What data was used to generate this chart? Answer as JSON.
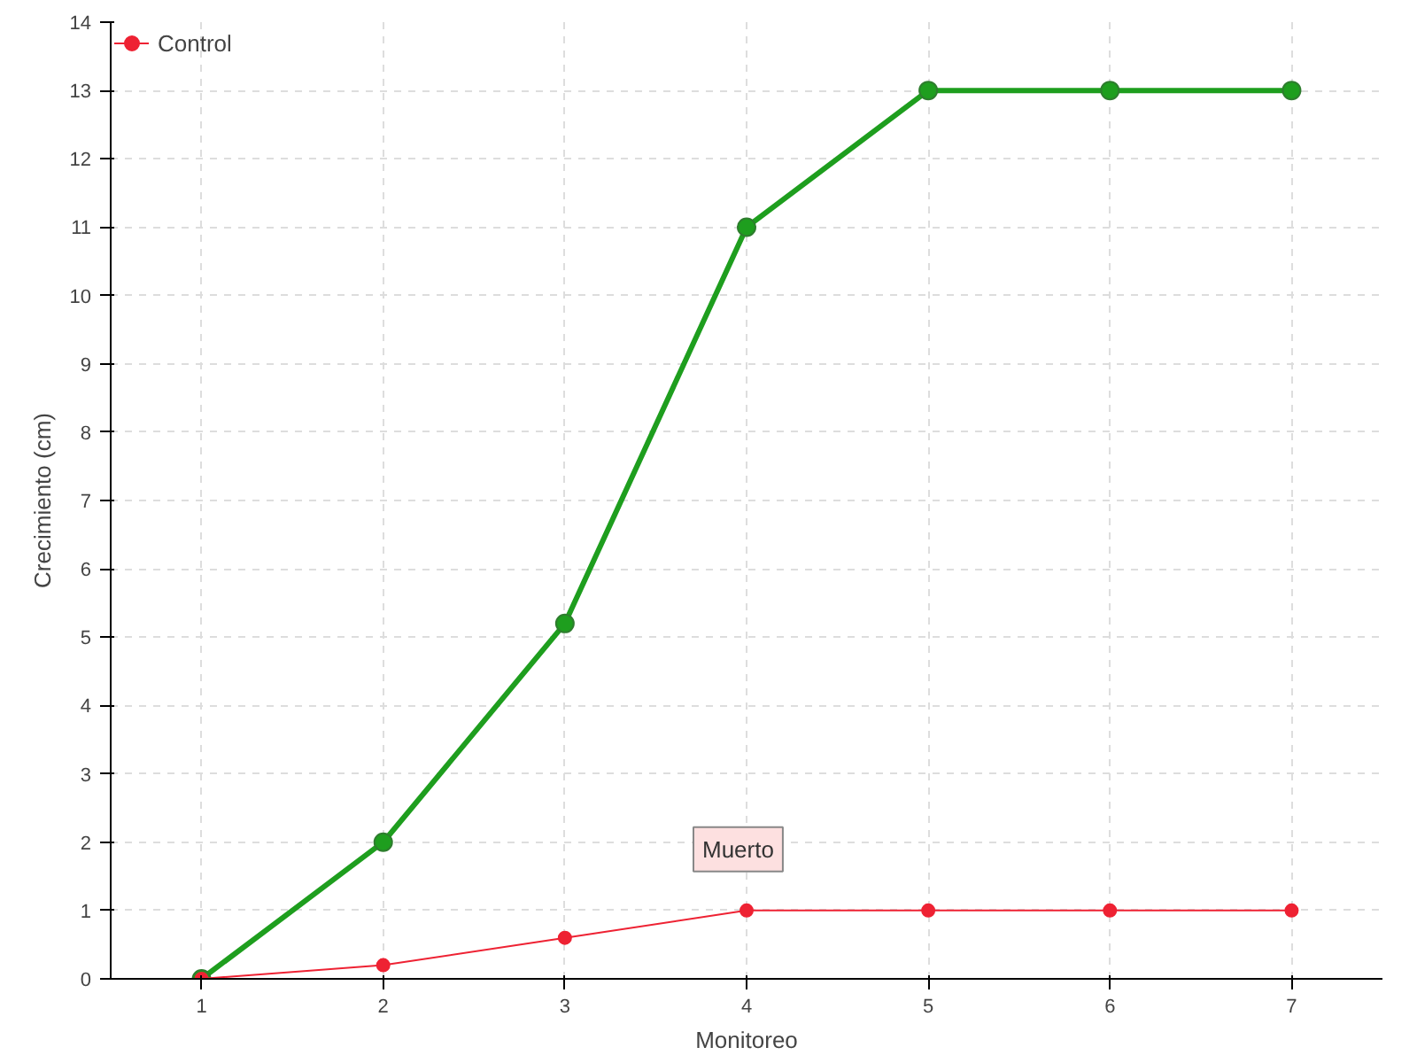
{
  "chart_data": {
    "type": "line",
    "xlabel": "Monitoreo",
    "ylabel": "Crecimiento (cm)",
    "x": [
      1,
      2,
      3,
      4,
      5,
      6,
      7
    ],
    "xlim": [
      0.5,
      7.5
    ],
    "xticks": [
      1,
      2,
      3,
      4,
      5,
      6,
      7
    ],
    "ylim": [
      0,
      14
    ],
    "yticks": [
      0,
      1,
      2,
      3,
      4,
      5,
      6,
      7,
      8,
      9,
      10,
      11,
      12,
      13,
      14
    ],
    "series": [
      {
        "color": "#1e9e1e",
        "values": [
          0,
          2,
          5.2,
          11,
          13,
          13,
          13
        ]
      },
      {
        "name": "Control",
        "color": "#ee2233",
        "values": [
          0,
          0.2,
          0.6,
          1,
          1,
          1,
          1
        ]
      }
    ],
    "annotations": [
      {
        "text": "Muerto",
        "x": 4,
        "y": 1
      }
    ],
    "grid": true,
    "legend": "top left",
    "marker": "circle",
    "line_style": "solid"
  }
}
